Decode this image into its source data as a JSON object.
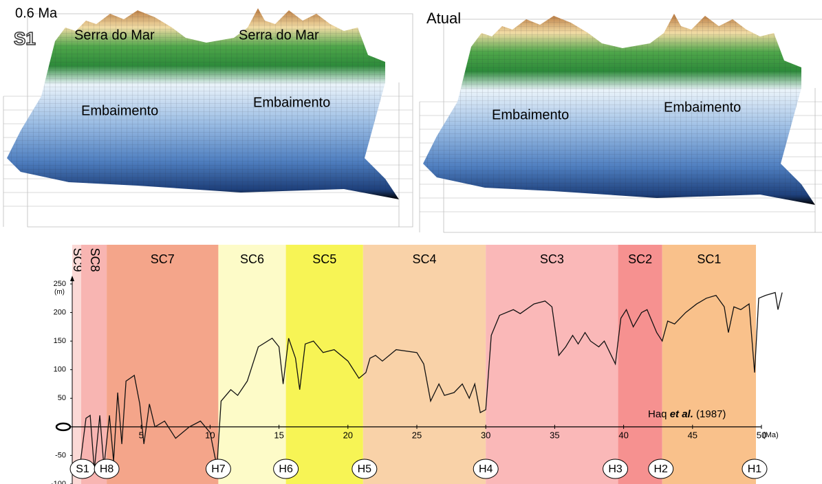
{
  "panels": [
    {
      "age": "0.6 Ma",
      "sequence": "S1",
      "labels": [
        "Serra do Mar",
        "Serra do Mar",
        "Embaimento",
        "Embaimento"
      ]
    },
    {
      "age": "Atual",
      "labels": [
        "Embaimento",
        "Embaimento"
      ]
    }
  ],
  "chart_data": {
    "type": "line",
    "x_label": "(Ma)",
    "y_label": "(m)",
    "annotation": {
      "author": "Haq ",
      "italic": "et al.",
      "year": " (1987)"
    },
    "xlim": [
      0,
      52
    ],
    "xticks": [
      5,
      10,
      15,
      20,
      25,
      30,
      35,
      40,
      45,
      50
    ],
    "ylim": [
      -100,
      250
    ],
    "yticks": [
      -100,
      -50,
      0,
      50,
      100,
      150,
      200,
      250
    ],
    "bands": [
      {
        "name": "SC9",
        "start": 0,
        "end": 0.65,
        "color": "#fbd9d6"
      },
      {
        "name": "SC8",
        "start": 0.65,
        "end": 2.5,
        "color": "#f8b5b2"
      },
      {
        "name": "SC7",
        "start": 2.5,
        "end": 10.6,
        "color": "#f4a58a"
      },
      {
        "name": "SC6",
        "start": 10.6,
        "end": 15.5,
        "color": "#fdfbc8"
      },
      {
        "name": "SC5",
        "start": 15.5,
        "end": 21.1,
        "color": "#f7f455"
      },
      {
        "name": "SC4",
        "start": 21.1,
        "end": 30,
        "color": "#f9d2a8"
      },
      {
        "name": "SC3",
        "start": 30,
        "end": 39.6,
        "color": "#fab8b8"
      },
      {
        "name": "SC2",
        "start": 39.6,
        "end": 42.8,
        "color": "#f69190"
      },
      {
        "name": "SC1",
        "start": 42.8,
        "end": 49.6,
        "color": "#f9c18b"
      }
    ],
    "horizons": [
      {
        "name": "S1",
        "x": 0.75
      },
      {
        "name": "H8",
        "x": 2.5
      },
      {
        "name": "H7",
        "x": 10.6
      },
      {
        "name": "H6",
        "x": 15.5
      },
      {
        "name": "H5",
        "x": 21.2
      },
      {
        "name": "H4",
        "x": 30
      },
      {
        "name": "H3",
        "x": 39.4
      },
      {
        "name": "H2",
        "x": 42.7
      },
      {
        "name": "H1",
        "x": 49.5
      }
    ],
    "x": [
      0.5,
      1.0,
      1.3,
      1.6,
      2.0,
      2.3,
      2.7,
      3.0,
      3.3,
      3.6,
      3.9,
      4.5,
      4.9,
      5.2,
      5.6,
      6.0,
      6.7,
      7.5,
      8.5,
      9.3,
      10.0,
      10.5,
      10.8,
      11.5,
      12.0,
      12.7,
      13.5,
      14.5,
      15.0,
      15.3,
      15.7,
      16.2,
      16.5,
      16.9,
      17.5,
      18.2,
      19.0,
      20.0,
      20.8,
      21.3,
      21.6,
      22.0,
      22.5,
      23.5,
      25.0,
      25.5,
      26.0,
      26.6,
      27.0,
      27.7,
      28.3,
      28.8,
      29.2,
      29.6,
      30.0,
      30.4,
      31.0,
      32.0,
      32.5,
      33.5,
      34.3,
      34.8,
      35.3,
      35.8,
      36.3,
      36.7,
      37.2,
      37.6,
      38.2,
      38.6,
      39.0,
      39.4,
      39.8,
      40.2,
      40.7,
      41.3,
      41.7,
      42.4,
      42.8,
      43.2,
      43.7,
      44.5,
      45.3,
      46.0,
      46.7,
      47.3,
      47.6,
      48.0,
      48.5,
      49.1,
      49.5,
      49.8,
      50.3,
      51.0,
      51.2,
      51.5
    ],
    "values": [
      -80,
      15,
      20,
      -75,
      20,
      -70,
      20,
      -60,
      60,
      -30,
      80,
      90,
      40,
      -30,
      40,
      0,
      10,
      -20,
      0,
      10,
      -10,
      -70,
      45,
      65,
      55,
      80,
      140,
      155,
      140,
      75,
      155,
      120,
      65,
      145,
      150,
      130,
      135,
      115,
      85,
      95,
      120,
      125,
      115,
      135,
      130,
      110,
      45,
      75,
      55,
      60,
      75,
      50,
      75,
      25,
      30,
      160,
      195,
      205,
      198,
      215,
      220,
      210,
      125,
      140,
      160,
      145,
      165,
      150,
      140,
      150,
      130,
      110,
      190,
      205,
      175,
      200,
      205,
      165,
      150,
      185,
      180,
      200,
      215,
      225,
      230,
      210,
      165,
      210,
      205,
      215,
      95,
      225,
      230,
      235,
      205,
      235
    ]
  }
}
